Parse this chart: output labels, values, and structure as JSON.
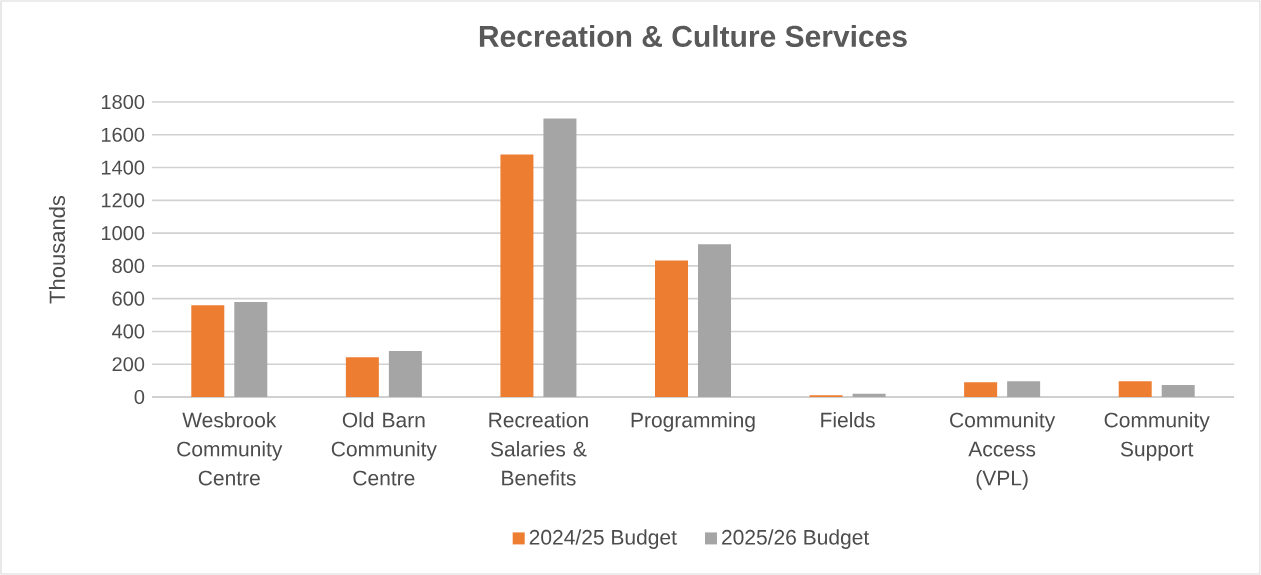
{
  "chart_data": {
    "type": "bar",
    "title": "Recreation & Culture Services",
    "ylabel": "Thousands",
    "categories": [
      "Wesbrook Community Centre",
      "Old Barn Community Centre",
      "Recreation Salaries & Benefits",
      "Programming",
      "Fields",
      "Community Access (VPL)",
      "Community Support"
    ],
    "series": [
      {
        "name": "2024/25 Budget",
        "color": "#ed7d31",
        "values": [
          560,
          243,
          1480,
          833,
          10,
          90,
          96
        ]
      },
      {
        "name": "2025/26 Budget",
        "color": "#a5a5a5",
        "values": [
          580,
          280,
          1700,
          932,
          20,
          96,
          73
        ]
      }
    ],
    "ylim": [
      0,
      1800
    ],
    "yticks": [
      0,
      200,
      400,
      600,
      800,
      1000,
      1200,
      1400,
      1600,
      1800
    ],
    "grid": "y",
    "legend": "bottom"
  }
}
